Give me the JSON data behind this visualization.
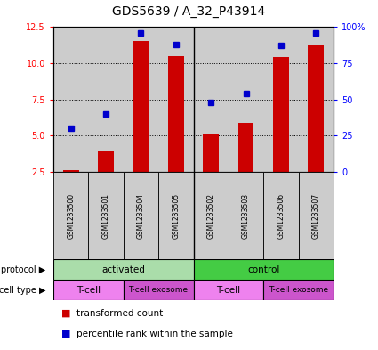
{
  "title": "GDS5639 / A_32_P43914",
  "samples": [
    "GSM1233500",
    "GSM1233501",
    "GSM1233504",
    "GSM1233505",
    "GSM1233502",
    "GSM1233503",
    "GSM1233506",
    "GSM1233507"
  ],
  "transformed_count": [
    2.6,
    4.0,
    11.5,
    10.5,
    5.1,
    5.9,
    10.4,
    11.3
  ],
  "percentile_rank": [
    5.5,
    6.5,
    12.1,
    11.3,
    7.3,
    7.9,
    11.2,
    12.1
  ],
  "bar_bottom": 2.5,
  "ylim": [
    2.5,
    12.5
  ],
  "yticks_left": [
    2.5,
    5.0,
    7.5,
    10.0,
    12.5
  ],
  "yticks_right": [
    0,
    25,
    50,
    75,
    100
  ],
  "ytick_labels_right": [
    "0",
    "25",
    "50",
    "75",
    "100%"
  ],
  "bar_color": "#cc0000",
  "dot_color": "#0000cc",
  "protocol_color_activated": "#aaddaa",
  "protocol_color_control": "#44cc44",
  "celltype_color_tcell": "#ee82ee",
  "celltype_color_exosome": "#cc55cc",
  "bg_color": "#cccccc",
  "title_fontsize": 10,
  "tick_fontsize": 7,
  "sample_fontsize": 5.5,
  "annot_fontsize": 7.5,
  "legend_fontsize": 7.5
}
